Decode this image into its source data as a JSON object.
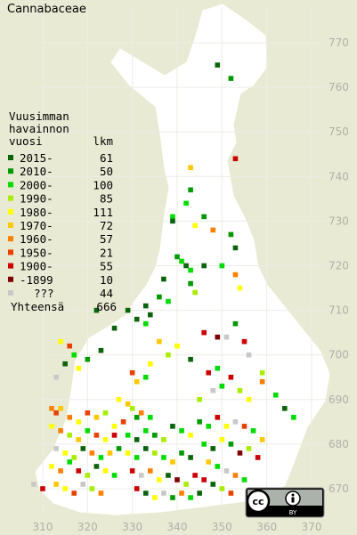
{
  "title": "Cannabaceae",
  "legend": {
    "heading": [
      "Vuusimman",
      "havainnon"
    ],
    "year_header": "vuosi",
    "count_header": "lkm",
    "rows": [
      {
        "label": "2015-",
        "count": 61,
        "color": "#0b640b"
      },
      {
        "label": "2010-",
        "count": 50,
        "color": "#009a00"
      },
      {
        "label": "2000-",
        "count": 100,
        "color": "#00dc00"
      },
      {
        "label": "1990-",
        "count": 85,
        "color": "#a8ee00"
      },
      {
        "label": "1980-",
        "count": 111,
        "color": "#ffff00"
      },
      {
        "label": "1970-",
        "count": 72,
        "color": "#ffc800"
      },
      {
        "label": "1960-",
        "count": 57,
        "color": "#ff8000"
      },
      {
        "label": "1950-",
        "count": 21,
        "color": "#e84000"
      },
      {
        "label": "1900-",
        "count": 55,
        "color": "#cc0000"
      },
      {
        "label": "-1899",
        "count": 10,
        "color": "#800000"
      },
      {
        "label": "???",
        "count": 44,
        "color": "#c8c8c8"
      }
    ],
    "total_label": "Yhteensä",
    "total": 666
  },
  "yticks": [
    670,
    680,
    690,
    700,
    710,
    720,
    730,
    740,
    750,
    760,
    770
  ],
  "xticks": [
    310,
    320,
    330,
    340,
    350,
    360,
    370
  ],
  "xlim": [
    310,
    370
  ],
  "ylim": [
    670,
    770
  ],
  "license": {
    "mark": "cc",
    "attribution": "BY"
  },
  "observations": [
    [
      349,
      765,
      0
    ],
    [
      352,
      762,
      1
    ],
    [
      353,
      744,
      8
    ],
    [
      343,
      742,
      5
    ],
    [
      343,
      737,
      1
    ],
    [
      342,
      734,
      2
    ],
    [
      339,
      731,
      2
    ],
    [
      339,
      730,
      0
    ],
    [
      344,
      729,
      4
    ],
    [
      346,
      731,
      1
    ],
    [
      348,
      728,
      6
    ],
    [
      352,
      727,
      1
    ],
    [
      353,
      724,
      0
    ],
    [
      341,
      721,
      2
    ],
    [
      342,
      720,
      0
    ],
    [
      340,
      722,
      1
    ],
    [
      343,
      719,
      2
    ],
    [
      346,
      720,
      0
    ],
    [
      350,
      720,
      2
    ],
    [
      353,
      718,
      6
    ],
    [
      354,
      715,
      4
    ],
    [
      337,
      717,
      0
    ],
    [
      336,
      713,
      1
    ],
    [
      338,
      712,
      2
    ],
    [
      334,
      709,
      0
    ],
    [
      333,
      711,
      0
    ],
    [
      331,
      708,
      0
    ],
    [
      333,
      707,
      2
    ],
    [
      326,
      706,
      0
    ],
    [
      329,
      710,
      0
    ],
    [
      322,
      710,
      0
    ],
    [
      343,
      716,
      1
    ],
    [
      344,
      714,
      3
    ],
    [
      346,
      705,
      8
    ],
    [
      349,
      704,
      9
    ],
    [
      351,
      704,
      10
    ],
    [
      353,
      707,
      1
    ],
    [
      355,
      703,
      8
    ],
    [
      356,
      700,
      10
    ],
    [
      359,
      696,
      3
    ],
    [
      359,
      694,
      6
    ],
    [
      362,
      691,
      2
    ],
    [
      364,
      688,
      0
    ],
    [
      366,
      686,
      2
    ],
    [
      314,
      703,
      4
    ],
    [
      316,
      702,
      7
    ],
    [
      317,
      700,
      2
    ],
    [
      315,
      698,
      0
    ],
    [
      318,
      697,
      4
    ],
    [
      320,
      699,
      1
    ],
    [
      323,
      701,
      0
    ],
    [
      313,
      695,
      10
    ],
    [
      330,
      696,
      7
    ],
    [
      331,
      694,
      5
    ],
    [
      333,
      695,
      2
    ],
    [
      334,
      698,
      4
    ],
    [
      336,
      703,
      5
    ],
    [
      338,
      700,
      3
    ],
    [
      340,
      702,
      4
    ],
    [
      343,
      699,
      0
    ],
    [
      327,
      690,
      4
    ],
    [
      329,
      689,
      5
    ],
    [
      330,
      688,
      3
    ],
    [
      332,
      687,
      6
    ],
    [
      334,
      686,
      2
    ],
    [
      331,
      686,
      1
    ],
    [
      328,
      685,
      7
    ],
    [
      326,
      684,
      4
    ],
    [
      312,
      688,
      6
    ],
    [
      313,
      687,
      7
    ],
    [
      314,
      688,
      5
    ],
    [
      316,
      686,
      6
    ],
    [
      318,
      685,
      4
    ],
    [
      320,
      687,
      7
    ],
    [
      322,
      686,
      5
    ],
    [
      324,
      687,
      3
    ],
    [
      312,
      684,
      4
    ],
    [
      314,
      683,
      6
    ],
    [
      316,
      682,
      3
    ],
    [
      318,
      681,
      5
    ],
    [
      320,
      683,
      2
    ],
    [
      322,
      682,
      7
    ],
    [
      324,
      681,
      4
    ],
    [
      326,
      682,
      8
    ],
    [
      313,
      679,
      10
    ],
    [
      315,
      678,
      4
    ],
    [
      317,
      677,
      3
    ],
    [
      319,
      679,
      0
    ],
    [
      321,
      678,
      6
    ],
    [
      323,
      677,
      2
    ],
    [
      325,
      678,
      5
    ],
    [
      327,
      679,
      1
    ],
    [
      312,
      675,
      4
    ],
    [
      314,
      674,
      6
    ],
    [
      316,
      676,
      2
    ],
    [
      318,
      674,
      8
    ],
    [
      320,
      673,
      3
    ],
    [
      322,
      675,
      0
    ],
    [
      324,
      674,
      4
    ],
    [
      326,
      673,
      2
    ],
    [
      313,
      671,
      5
    ],
    [
      315,
      670,
      4
    ],
    [
      317,
      669,
      7
    ],
    [
      319,
      671,
      10
    ],
    [
      321,
      670,
      3
    ],
    [
      323,
      669,
      6
    ],
    [
      308,
      671,
      10
    ],
    [
      310,
      670,
      8
    ],
    [
      329,
      682,
      2
    ],
    [
      331,
      681,
      0
    ],
    [
      333,
      683,
      2
    ],
    [
      335,
      682,
      1
    ],
    [
      337,
      681,
      3
    ],
    [
      339,
      684,
      0
    ],
    [
      341,
      683,
      2
    ],
    [
      343,
      682,
      4
    ],
    [
      329,
      678,
      4
    ],
    [
      331,
      677,
      2
    ],
    [
      333,
      679,
      0
    ],
    [
      335,
      678,
      3
    ],
    [
      337,
      677,
      2
    ],
    [
      339,
      676,
      5
    ],
    [
      341,
      678,
      1
    ],
    [
      343,
      677,
      0
    ],
    [
      330,
      674,
      8
    ],
    [
      332,
      673,
      10
    ],
    [
      334,
      674,
      6
    ],
    [
      336,
      672,
      4
    ],
    [
      338,
      673,
      0
    ],
    [
      340,
      672,
      9
    ],
    [
      342,
      671,
      3
    ],
    [
      344,
      673,
      8
    ],
    [
      331,
      670,
      8
    ],
    [
      333,
      669,
      0
    ],
    [
      335,
      668,
      4
    ],
    [
      337,
      669,
      10
    ],
    [
      339,
      668,
      1
    ],
    [
      341,
      669,
      6
    ],
    [
      343,
      668,
      2
    ],
    [
      345,
      669,
      0
    ],
    [
      345,
      685,
      1
    ],
    [
      347,
      684,
      2
    ],
    [
      349,
      686,
      8
    ],
    [
      351,
      684,
      4
    ],
    [
      353,
      685,
      10
    ],
    [
      355,
      684,
      7
    ],
    [
      357,
      683,
      2
    ],
    [
      359,
      681,
      5
    ],
    [
      346,
      680,
      2
    ],
    [
      348,
      679,
      0
    ],
    [
      350,
      681,
      4
    ],
    [
      352,
      680,
      1
    ],
    [
      354,
      678,
      9
    ],
    [
      356,
      679,
      3
    ],
    [
      358,
      677,
      8
    ],
    [
      347,
      676,
      5
    ],
    [
      349,
      675,
      2
    ],
    [
      351,
      674,
      10
    ],
    [
      353,
      673,
      6
    ],
    [
      355,
      672,
      2
    ],
    [
      346,
      672,
      8
    ],
    [
      348,
      671,
      0
    ],
    [
      350,
      670,
      3
    ],
    [
      352,
      669,
      7
    ],
    [
      345,
      690,
      3
    ],
    [
      348,
      692,
      10
    ],
    [
      350,
      693,
      2
    ],
    [
      352,
      695,
      8
    ],
    [
      354,
      692,
      3
    ],
    [
      356,
      690,
      4
    ],
    [
      349,
      697,
      2
    ],
    [
      347,
      696,
      8
    ]
  ]
}
